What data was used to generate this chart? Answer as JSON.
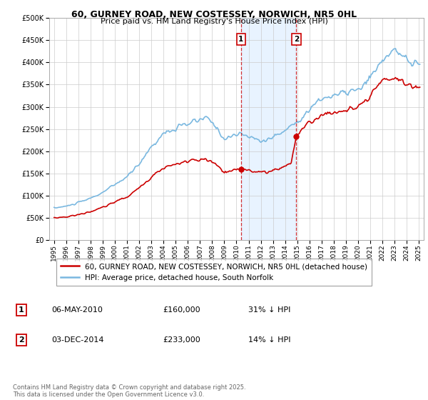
{
  "title": "60, GURNEY ROAD, NEW COSTESSEY, NORWICH, NR5 0HL",
  "subtitle": "Price paid vs. HM Land Registry's House Price Index (HPI)",
  "background_color": "#ffffff",
  "plot_bg_color": "#ffffff",
  "grid_color": "#cccccc",
  "hpi_color": "#7ab8e0",
  "price_color": "#cc0000",
  "annotation1_date": "06-MAY-2010",
  "annotation1_price": 160000,
  "annotation1_hpi_pct": "31% ↓ HPI",
  "annotation2_date": "03-DEC-2014",
  "annotation2_price": 233000,
  "annotation2_hpi_pct": "14% ↓ HPI",
  "legend_label1": "60, GURNEY ROAD, NEW COSTESSEY, NORWICH, NR5 0HL (detached house)",
  "legend_label2": "HPI: Average price, detached house, South Norfolk",
  "footer": "Contains HM Land Registry data © Crown copyright and database right 2025.\nThis data is licensed under the Open Government Licence v3.0.",
  "ylim": [
    0,
    500000
  ],
  "yticks": [
    0,
    50000,
    100000,
    150000,
    200000,
    250000,
    300000,
    350000,
    400000,
    450000,
    500000
  ],
  "sale1_x": 2010.37,
  "sale2_x": 2014.92,
  "vline1_x": 2010.37,
  "vline2_x": 2014.92,
  "shade_xmin": 2010.37,
  "shade_xmax": 2014.92,
  "xlim_min": 1994.6,
  "xlim_max": 2025.4
}
